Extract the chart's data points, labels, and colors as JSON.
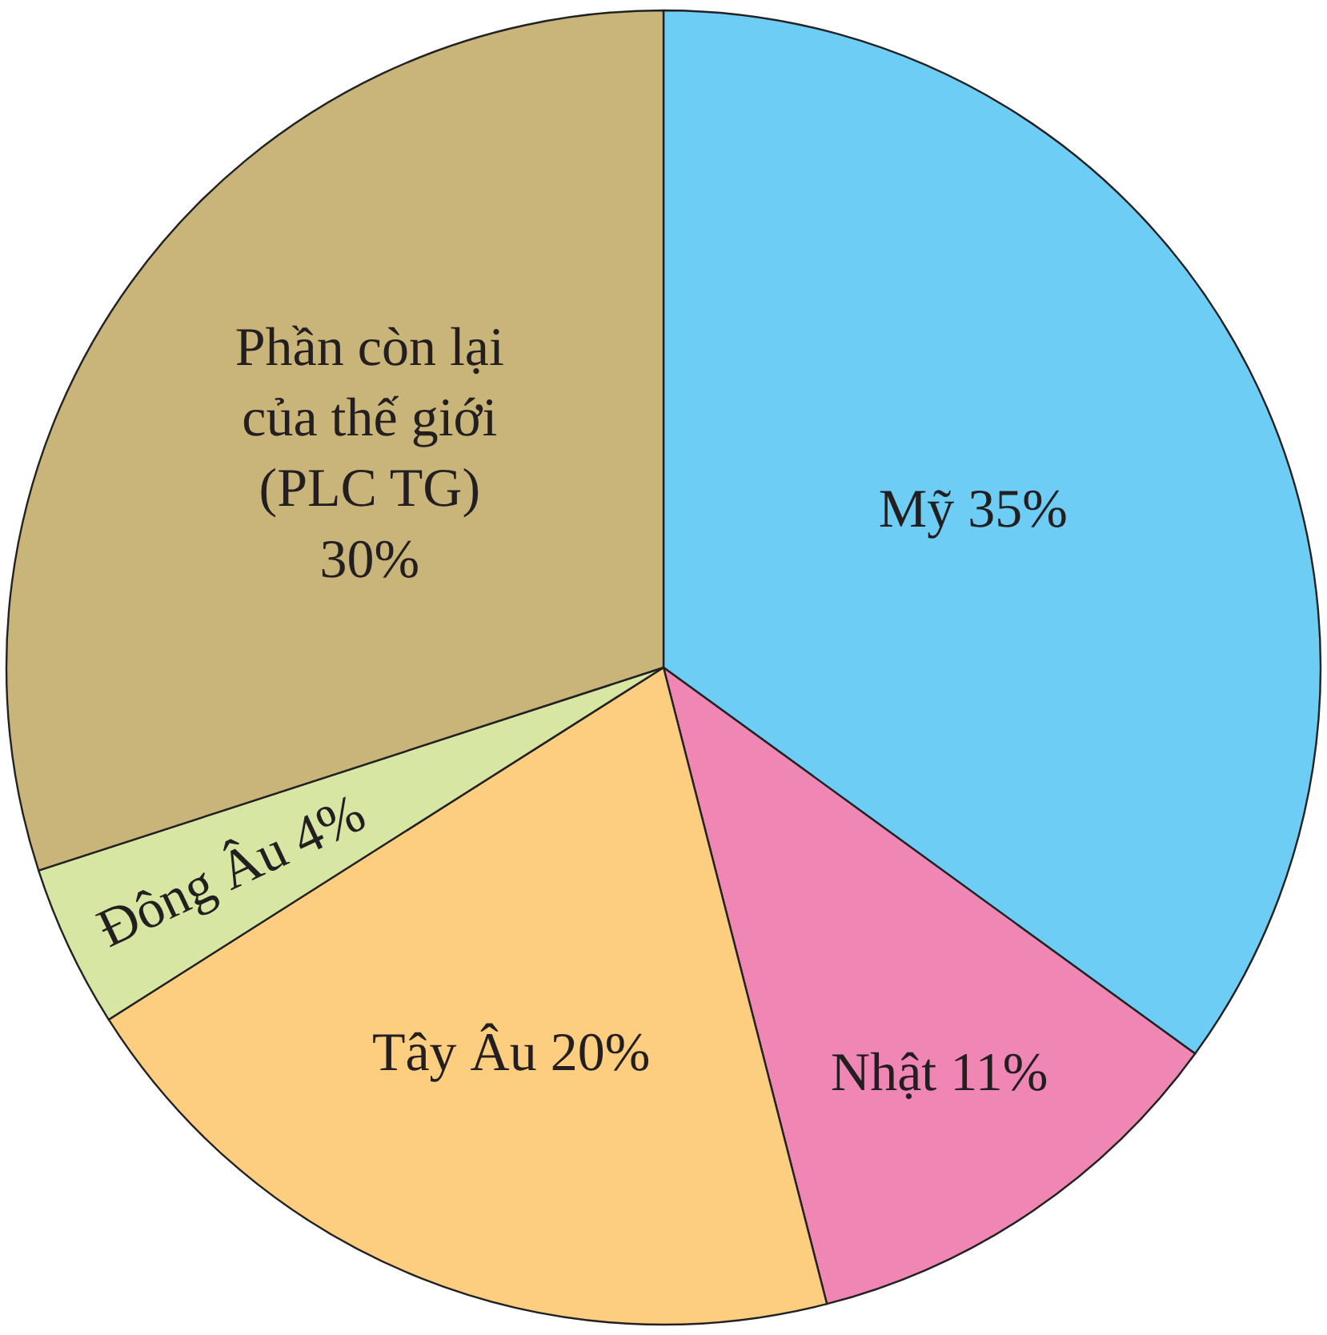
{
  "chart_data": {
    "type": "pie",
    "categories": [
      "Mỹ",
      "Nhật",
      "Tây Âu",
      "Đông Âu",
      "Phần còn lại của thế giới (PLC TG)"
    ],
    "values": [
      35,
      11,
      20,
      4,
      30
    ],
    "value_labels": [
      "35%",
      "11%",
      "20%",
      "4%",
      "30%"
    ],
    "colors": [
      "#6dcdf5",
      "#ef86b4",
      "#fdcd80",
      "#d8e6a4",
      "#c9b57a"
    ],
    "legend": false
  }
}
